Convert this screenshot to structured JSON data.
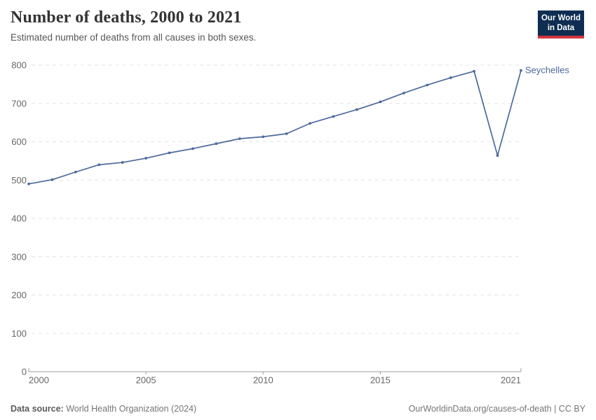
{
  "header": {
    "title": "Number of deaths, 2000 to 2021",
    "subtitle": "Estimated number of deaths from all causes in both sexes."
  },
  "logo": {
    "line1": "Our World",
    "line2": "in Data",
    "bg_color": "#0e2d51",
    "accent_color": "#d1353f"
  },
  "chart_data": {
    "type": "line",
    "title": "Number of deaths, 2000 to 2021",
    "subtitle": "Estimated number of deaths from all causes in both sexes.",
    "xlabel": "",
    "ylabel": "",
    "ylim": [
      0,
      800
    ],
    "yticks": [
      0,
      100,
      200,
      300,
      400,
      500,
      600,
      700,
      800
    ],
    "xticks": [
      2000,
      2005,
      2010,
      2015,
      2021
    ],
    "grid": true,
    "grid_style": "dashed",
    "legend": "end-of-line-label",
    "series": [
      {
        "name": "Seychelles",
        "color": "#4c6a9c",
        "x": [
          2000,
          2001,
          2002,
          2003,
          2004,
          2005,
          2006,
          2007,
          2008,
          2009,
          2010,
          2011,
          2012,
          2013,
          2014,
          2015,
          2016,
          2017,
          2018,
          2019,
          2020,
          2021
        ],
        "values": [
          490,
          501,
          521,
          540,
          546,
          557,
          571,
          582,
          595,
          608,
          613,
          621,
          648,
          666,
          684,
          704,
          727,
          748,
          767,
          784,
          564,
          786
        ]
      }
    ],
    "colors": {
      "gridline": "#e3e3e3",
      "axis": "#9c9c9c",
      "tick_label": "#666666"
    }
  },
  "footer": {
    "source_label": "Data source:",
    "source_value": "World Health Organization (2024)",
    "right": "OurWorldinData.org/causes-of-death | CC BY"
  }
}
